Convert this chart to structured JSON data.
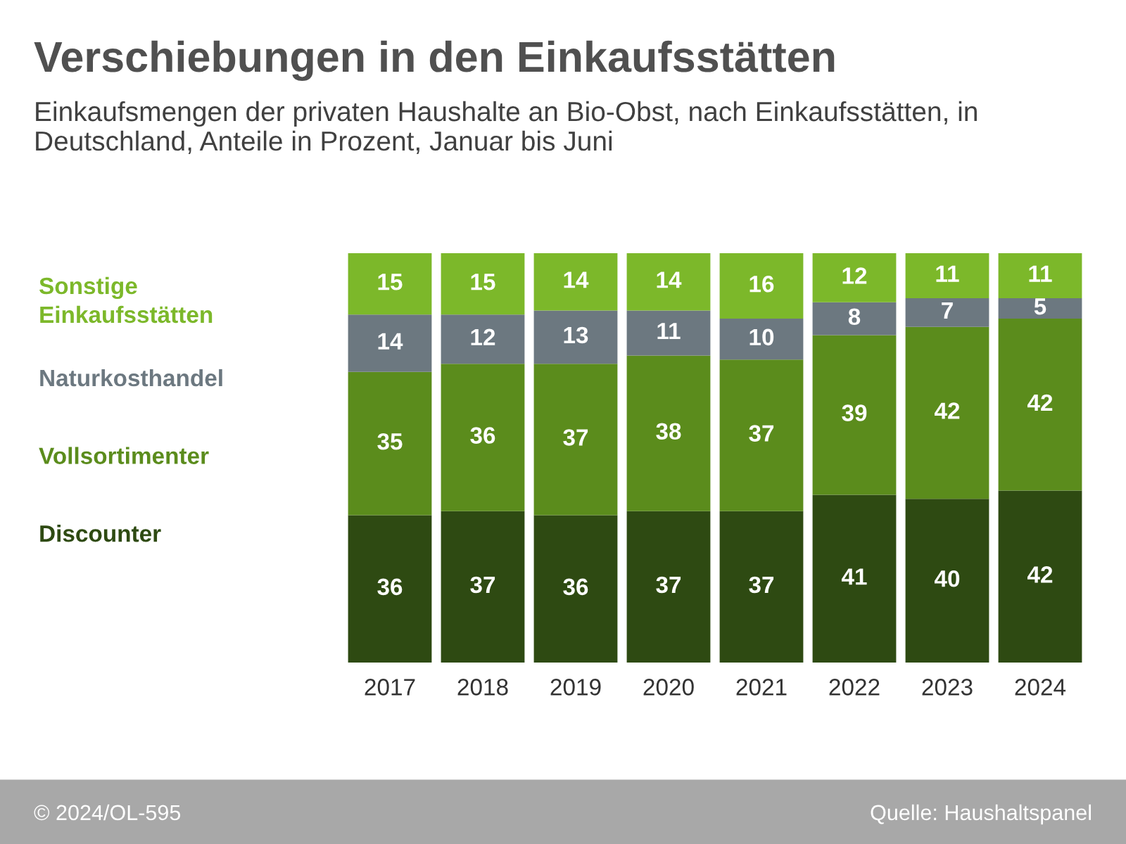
{
  "chart_data": {
    "type": "bar",
    "title": "Verschiebungen in den Einkaufsstätten",
    "subtitle": "Einkaufsmengen der privaten Haushalte an Bio-Obst, nach Einkaufsstätten, in Deutschland, Anteile in Prozent, Januar bis Juni",
    "categories": [
      "2017",
      "2018",
      "2019",
      "2020",
      "2021",
      "2022",
      "2023",
      "2024"
    ],
    "stacked": true,
    "data_labels": true,
    "legend": "left",
    "series": [
      {
        "name": "Discounter",
        "color": "#2e4a12",
        "values": [
          36,
          37,
          36,
          37,
          37,
          41,
          40,
          42
        ]
      },
      {
        "name": "Vollsortimenter",
        "color": "#5b8c1c",
        "values": [
          35,
          36,
          37,
          38,
          37,
          39,
          42,
          42
        ]
      },
      {
        "name": "Naturkosthandel",
        "color": "#6c7880",
        "values": [
          14,
          12,
          13,
          11,
          10,
          8,
          7,
          5
        ]
      },
      {
        "name": "Sonstige\nEinkaufsstätten",
        "color": "#7cb82a",
        "values": [
          15,
          15,
          14,
          14,
          16,
          12,
          11,
          11
        ]
      }
    ],
    "annotations": [
      "© 2024/OL-595",
      "Quelle: Haushaltspanel"
    ]
  }
}
